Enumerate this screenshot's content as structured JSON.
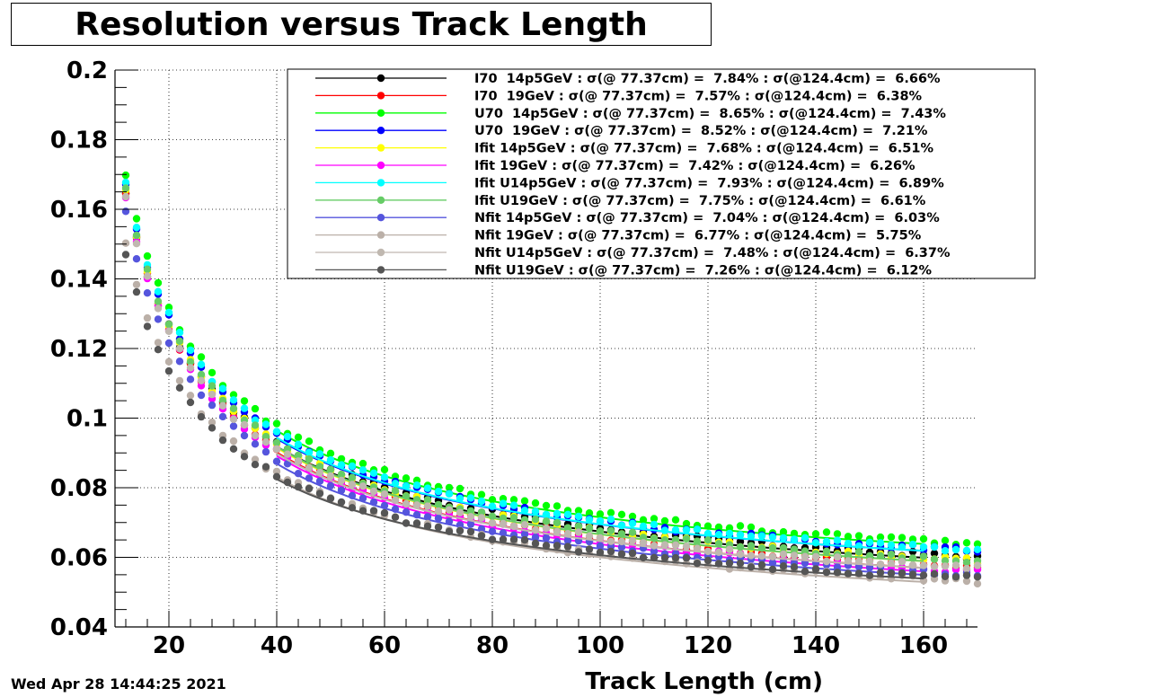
{
  "chart_data": {
    "type": "scatter",
    "title": "Resolution versus Track Length",
    "xlabel": "Track Length (cm)",
    "ylabel": "",
    "xlim": [
      10,
      170
    ],
    "ylim": [
      0.04,
      0.2
    ],
    "xticks": [
      "20",
      "40",
      "60",
      "80",
      "100",
      "120",
      "140",
      "160"
    ],
    "yticks": [
      "0.04",
      "0.06",
      "0.08",
      "0.1",
      "0.12",
      "0.14",
      "0.16",
      "0.18",
      "0.2"
    ],
    "grid": true,
    "legend_position": "top-right",
    "series": [
      {
        "name": "I70  14p5GeV : σ(@ 77.37cm) =  7.84% : σ(@124.4cm) =  6.66%",
        "color": "#000000",
        "y_at_12": 0.164,
        "y_at_170": 0.06
      },
      {
        "name": "I70  19GeV : σ(@ 77.37cm) =  7.57% : σ(@124.4cm) =  6.38%",
        "color": "#ff0000",
        "y_at_12": 0.165,
        "y_at_170": 0.057
      },
      {
        "name": "U70  14p5GeV : σ(@ 77.37cm) =  8.65% : σ(@124.4cm) =  7.43%",
        "color": "#00ff00",
        "y_at_12": 0.17,
        "y_at_170": 0.064
      },
      {
        "name": "U70  19GeV : σ(@ 77.37cm) =  8.52% : σ(@124.4cm) =  7.21%",
        "color": "#0000ff",
        "y_at_12": 0.167,
        "y_at_170": 0.062
      },
      {
        "name": "Ifit 14p5GeV : σ(@ 77.37cm) =  7.68% : σ(@124.4cm) =  6.51%",
        "color": "#ffff00",
        "y_at_12": 0.165,
        "y_at_170": 0.059
      },
      {
        "name": "Ifit 19GeV : σ(@ 77.37cm) =  7.42% : σ(@124.4cm) =  6.26%",
        "color": "#ff00ff",
        "y_at_12": 0.164,
        "y_at_170": 0.056
      },
      {
        "name": "Ifit U14p5GeV : σ(@ 77.37cm) =  7.93% : σ(@124.4cm) =  6.89%",
        "color": "#00ffff",
        "y_at_12": 0.168,
        "y_at_170": 0.062
      },
      {
        "name": "Ifit U19GeV : σ(@ 77.37cm) =  7.75% : σ(@124.4cm) =  6.61%",
        "color": "#66cc66",
        "y_at_12": 0.166,
        "y_at_170": 0.059
      },
      {
        "name": "Nfit 14p5GeV : σ(@ 77.37cm) =  7.04% : σ(@124.4cm) =  6.03%",
        "color": "#5555dd",
        "y_at_12": 0.159,
        "y_at_170": 0.055
      },
      {
        "name": "Nfit 19GeV : σ(@ 77.37cm) =  6.77% : σ(@124.4cm) =  5.75%",
        "color": "#bbb0a8",
        "y_at_12": 0.151,
        "y_at_170": 0.053
      },
      {
        "name": "Nfit U14p5GeV : σ(@ 77.37cm) =  7.48% : σ(@124.4cm) =  6.37%",
        "color": "#c0b8b0",
        "y_at_12": 0.164,
        "y_at_170": 0.057
      },
      {
        "name": "Nfit U19GeV : σ(@ 77.37cm) =  7.26% : σ(@124.4cm) =  6.12%",
        "color": "#555555",
        "y_at_12": 0.147,
        "y_at_170": 0.054
      }
    ]
  },
  "timestamp": "Wed Apr 28 14:44:25 2021"
}
